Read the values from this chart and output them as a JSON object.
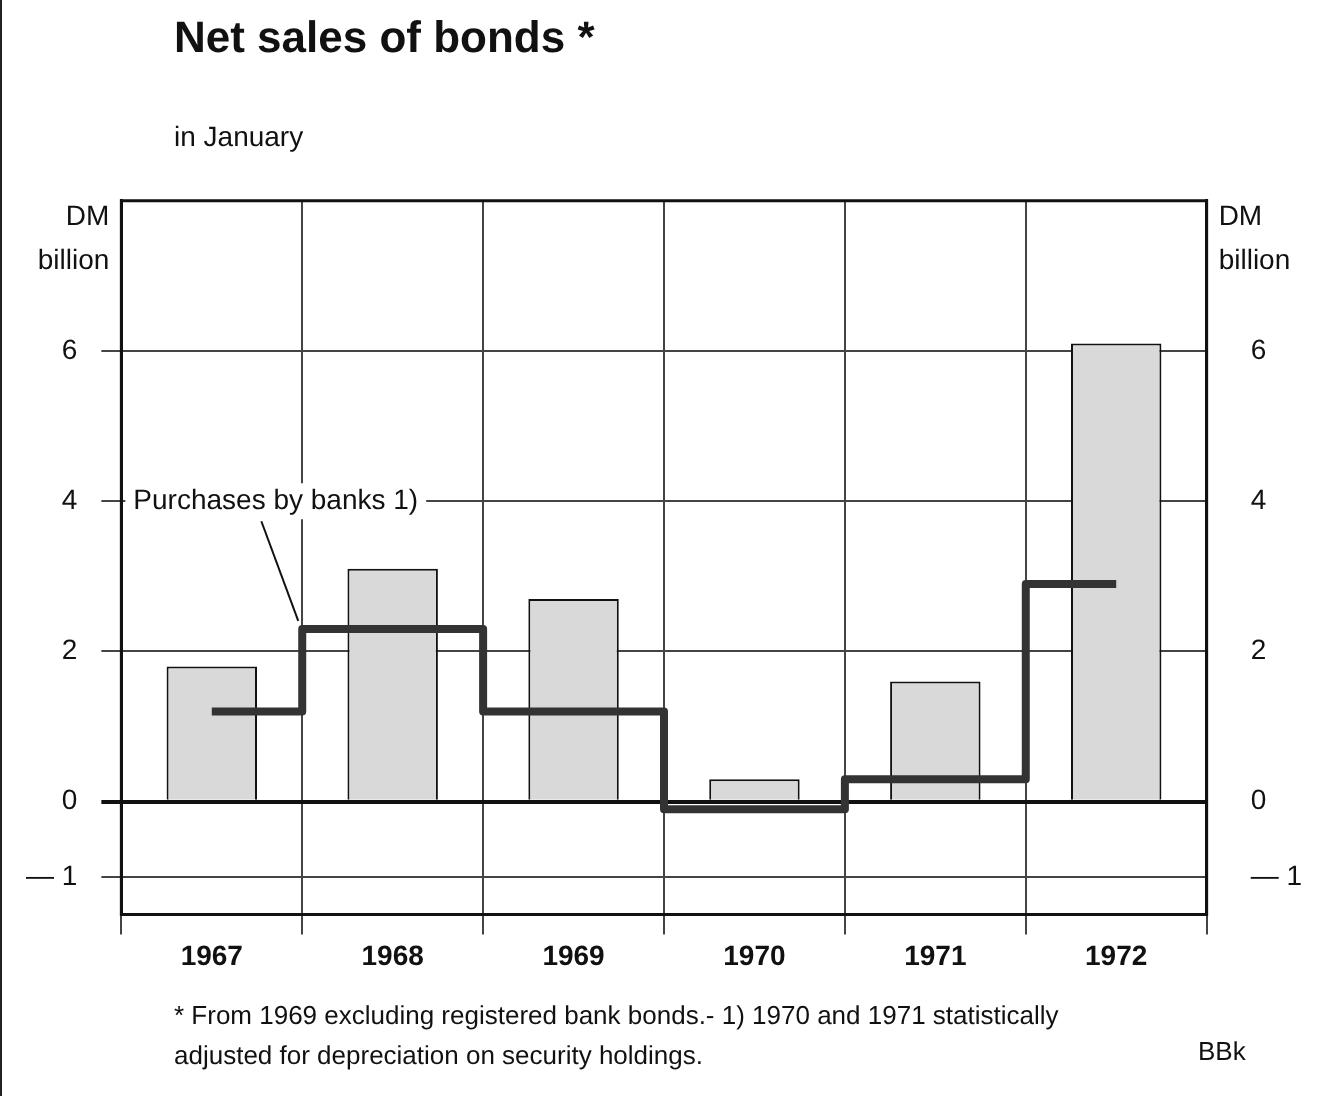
{
  "chart_data": {
    "type": "bar",
    "title": "Net sales of bonds *",
    "subtitle": "in January",
    "ylabel": "DM billion",
    "y2label": "DM billion",
    "categories": [
      "1967",
      "1968",
      "1969",
      "1970",
      "1971",
      "1972"
    ],
    "series": [
      {
        "color": "#d9d9d9",
        "values": [
          1.8,
          3.1,
          2.7,
          0.3,
          1.6,
          6.1
        ]
      },
      {
        "type": "step",
        "name": "Purchases by banks 1)",
        "color": "#333333",
        "values": [
          1.2,
          2.3,
          1.2,
          -0.1,
          0.3,
          2.9
        ]
      }
    ],
    "ylim": [
      -1.5,
      8
    ],
    "yticks": [
      {
        "value": -1,
        "label": "— 1"
      },
      0,
      2,
      4,
      6
    ],
    "y2lim": [
      -1.5,
      8
    ],
    "y2ticks": [
      {
        "value": -1,
        "label": "— 1"
      },
      0,
      2,
      4,
      6
    ],
    "grid": true,
    "legend": false,
    "annotations": [
      "* From 1969 excluding registered bank bonds.- 1) 1970 and 1971 statistically adjusted for depreciation on security holdings.",
      "BBk"
    ]
  }
}
